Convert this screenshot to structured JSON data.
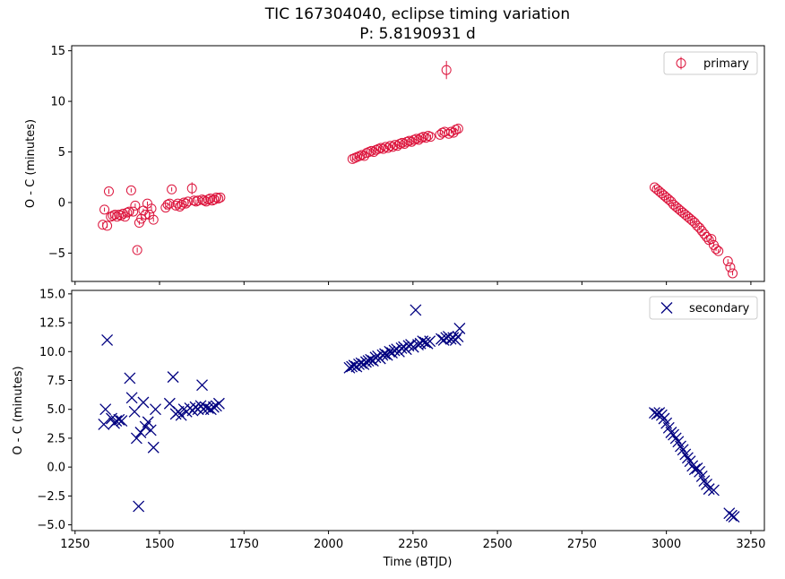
{
  "title": "TIC 167304040, eclipse timing variation",
  "subtitle": "P: 5.8190931 d",
  "chart_data": [
    {
      "type": "scatter",
      "panel": "top",
      "ylabel": "O - C (minutes)",
      "xlim": [
        1240,
        3290
      ],
      "ylim": [
        -7.8,
        15.5
      ],
      "yticks": [
        -5,
        0,
        5,
        10,
        15
      ],
      "yticklabels": [
        "−5",
        "0",
        "5",
        "10",
        "15"
      ],
      "xticks": [
        1250,
        1500,
        1750,
        2000,
        2250,
        2500,
        2750,
        3000,
        3250
      ],
      "show_xticklabels": false,
      "legend": "top-right",
      "grid": false,
      "series": [
        {
          "name": "primary",
          "marker": "open-circle-errorbar",
          "color": "#dc143c",
          "x": [
            1332,
            1337,
            1345,
            1350,
            1356,
            1362,
            1368,
            1374,
            1380,
            1386,
            1392,
            1398,
            1404,
            1410,
            1416,
            1422,
            1428,
            1434,
            1440,
            1446,
            1452,
            1458,
            1464,
            1470,
            1476,
            1482,
            1518,
            1524,
            1530,
            1536,
            1548,
            1554,
            1560,
            1566,
            1572,
            1578,
            1584,
            1596,
            1602,
            1608,
            1614,
            1626,
            1632,
            1638,
            1644,
            1650,
            1656,
            1662,
            1668,
            1674,
            1680,
            2071,
            2078,
            2085,
            2092,
            2099,
            2106,
            2113,
            2120,
            2127,
            2134,
            2141,
            2148,
            2155,
            2162,
            2169,
            2176,
            2183,
            2190,
            2197,
            2204,
            2211,
            2218,
            2225,
            2232,
            2239,
            2246,
            2253,
            2260,
            2267,
            2274,
            2281,
            2288,
            2295,
            2302,
            2330,
            2337,
            2344,
            2349,
            2356,
            2363,
            2370,
            2377,
            2384,
            2965,
            2972,
            2979,
            2986,
            2993,
            3000,
            3007,
            3014,
            3021,
            3028,
            3035,
            3042,
            3049,
            3056,
            3063,
            3070,
            3077,
            3084,
            3091,
            3098,
            3105,
            3112,
            3119,
            3126,
            3133,
            3140,
            3147,
            3154,
            3182,
            3189,
            3196
          ],
          "y": [
            -2.2,
            -0.7,
            -2.3,
            1.1,
            -1.4,
            -1.3,
            -1.2,
            -1.4,
            -1.2,
            -1.3,
            -1.1,
            -1.4,
            -1.0,
            -0.9,
            1.2,
            -0.9,
            -0.3,
            -4.7,
            -2.0,
            -1.6,
            -0.8,
            -1.2,
            -0.1,
            -1.2,
            -0.6,
            -1.7,
            -0.5,
            -0.2,
            -0.1,
            1.3,
            -0.3,
            -0.1,
            -0.4,
            -0.2,
            0.0,
            -0.1,
            0.1,
            1.4,
            0.2,
            0.1,
            0.2,
            0.3,
            0.2,
            0.1,
            0.3,
            0.4,
            0.2,
            0.3,
            0.5,
            0.4,
            0.5,
            4.3,
            4.4,
            4.5,
            4.6,
            4.7,
            4.6,
            4.9,
            5.0,
            5.1,
            5.0,
            5.2,
            5.3,
            5.4,
            5.3,
            5.5,
            5.4,
            5.6,
            5.5,
            5.7,
            5.6,
            5.8,
            5.9,
            5.8,
            6.0,
            6.1,
            6.0,
            6.2,
            6.3,
            6.2,
            6.4,
            6.5,
            6.4,
            6.6,
            6.5,
            6.7,
            6.9,
            7.0,
            13.1,
            6.8,
            7.0,
            6.9,
            7.2,
            7.3,
            1.5,
            1.3,
            1.1,
            0.9,
            0.7,
            0.5,
            0.3,
            0.1,
            -0.2,
            -0.4,
            -0.6,
            -0.8,
            -1.0,
            -1.2,
            -1.4,
            -1.6,
            -1.8,
            -2.0,
            -2.3,
            -2.5,
            -2.8,
            -3.1,
            -3.4,
            -3.7,
            -3.6,
            -4.2,
            -4.6,
            -4.8,
            -5.8,
            -6.4,
            -7.0
          ],
          "yerr": [
            0.25,
            0.2,
            0.2,
            0.25,
            0.2,
            0.2,
            0.2,
            0.2,
            0.2,
            0.2,
            0.2,
            0.2,
            0.2,
            0.2,
            0.2,
            0.2,
            0.2,
            0.25,
            0.2,
            0.2,
            0.2,
            0.2,
            0.2,
            0.2,
            0.2,
            0.2,
            0.2,
            0.2,
            0.2,
            0.2,
            0.2,
            0.2,
            0.2,
            0.2,
            0.2,
            0.2,
            0.2,
            0.6,
            0.2,
            0.2,
            0.2,
            0.2,
            0.2,
            0.2,
            0.2,
            0.2,
            0.2,
            0.2,
            0.2,
            0.2,
            0.2,
            0.2,
            0.2,
            0.2,
            0.2,
            0.2,
            0.2,
            0.2,
            0.2,
            0.2,
            0.2,
            0.2,
            0.2,
            0.2,
            0.2,
            0.2,
            0.2,
            0.2,
            0.2,
            0.2,
            0.2,
            0.2,
            0.2,
            0.2,
            0.2,
            0.2,
            0.2,
            0.2,
            0.2,
            0.2,
            0.2,
            0.2,
            0.2,
            0.2,
            0.2,
            0.2,
            0.2,
            0.2,
            0.9,
            0.2,
            0.2,
            0.2,
            0.2,
            0.2,
            0.2,
            0.2,
            0.2,
            0.2,
            0.2,
            0.2,
            0.2,
            0.2,
            0.2,
            0.2,
            0.2,
            0.2,
            0.2,
            0.2,
            0.2,
            0.2,
            0.2,
            0.2,
            0.2,
            0.2,
            0.2,
            0.2,
            0.2,
            0.2,
            0.2,
            0.2,
            0.2,
            0.2,
            0.2,
            0.2,
            0.2
          ]
        }
      ]
    },
    {
      "type": "scatter",
      "panel": "bottom",
      "xlabel": "Time (BTJD)",
      "ylabel": "O - C (minutes)",
      "xlim": [
        1240,
        3290
      ],
      "ylim": [
        -5.5,
        15.3
      ],
      "yticks": [
        -5.0,
        -2.5,
        0.0,
        2.5,
        5.0,
        7.5,
        10.0,
        12.5,
        15.0
      ],
      "yticklabels": [
        "−5.0",
        "−2.5",
        "0.0",
        "2.5",
        "5.0",
        "7.5",
        "10.0",
        "12.5",
        "15.0"
      ],
      "xticks": [
        1250,
        1500,
        1750,
        2000,
        2250,
        2500,
        2750,
        3000,
        3250
      ],
      "xticklabels": [
        "1250",
        "1500",
        "1750",
        "2000",
        "2250",
        "2500",
        "2750",
        "3000",
        "3250"
      ],
      "legend": "top-right",
      "grid": false,
      "series": [
        {
          "name": "secondary",
          "marker": "x",
          "color": "#000080",
          "x": [
            1335,
            1340,
            1345,
            1358,
            1366,
            1372,
            1380,
            1388,
            1412,
            1418,
            1426,
            1432,
            1438,
            1444,
            1452,
            1458,
            1466,
            1474,
            1482,
            1488,
            1530,
            1540,
            1548,
            1556,
            1564,
            1572,
            1580,
            1590,
            1598,
            1606,
            1614,
            1622,
            1626,
            1630,
            1636,
            1644,
            1652,
            1660,
            1668,
            1676,
            2062,
            2069,
            2076,
            2083,
            2090,
            2097,
            2104,
            2111,
            2118,
            2125,
            2132,
            2139,
            2146,
            2153,
            2160,
            2167,
            2174,
            2181,
            2188,
            2195,
            2202,
            2209,
            2216,
            2223,
            2230,
            2237,
            2244,
            2251,
            2258,
            2265,
            2272,
            2279,
            2286,
            2293,
            2300,
            2334,
            2341,
            2348,
            2355,
            2362,
            2369,
            2376,
            2383,
            2388,
            2965,
            2972,
            2979,
            2986,
            2993,
            3000,
            3007,
            3014,
            3021,
            3028,
            3035,
            3042,
            3049,
            3056,
            3063,
            3070,
            3077,
            3084,
            3091,
            3098,
            3105,
            3112,
            3119,
            3126,
            3140,
            3186,
            3193,
            3200
          ],
          "y": [
            3.7,
            5.0,
            11.0,
            4.2,
            3.8,
            4.0,
            4.1,
            4.0,
            7.7,
            6.0,
            4.8,
            2.5,
            -3.4,
            3.0,
            5.6,
            3.5,
            3.9,
            3.2,
            1.7,
            5.0,
            5.5,
            7.8,
            4.6,
            4.8,
            4.5,
            5.0,
            4.8,
            5.1,
            4.9,
            5.2,
            5.0,
            5.3,
            7.1,
            5.0,
            5.2,
            5.1,
            5.0,
            5.2,
            5.3,
            5.5,
            8.6,
            8.7,
            8.8,
            8.7,
            8.9,
            9.0,
            8.9,
            9.1,
            9.2,
            9.3,
            9.2,
            9.5,
            9.6,
            9.4,
            9.7,
            9.8,
            9.7,
            10.0,
            9.9,
            10.1,
            10.2,
            10.0,
            10.3,
            10.4,
            10.2,
            10.5,
            10.6,
            10.4,
            13.6,
            10.6,
            10.7,
            10.9,
            10.8,
            10.7,
            10.9,
            11.1,
            11.0,
            11.2,
            11.3,
            11.1,
            11.2,
            11.0,
            11.3,
            12.0,
            4.7,
            4.6,
            4.7,
            4.5,
            4.2,
            3.8,
            3.4,
            3.0,
            2.8,
            2.5,
            2.2,
            1.8,
            1.5,
            1.1,
            0.8,
            0.5,
            0.1,
            -0.2,
            -0.1,
            -0.4,
            -0.8,
            -1.2,
            -1.5,
            -1.9,
            -2.0,
            -4.0,
            -4.2,
            -4.3
          ]
        }
      ]
    }
  ]
}
